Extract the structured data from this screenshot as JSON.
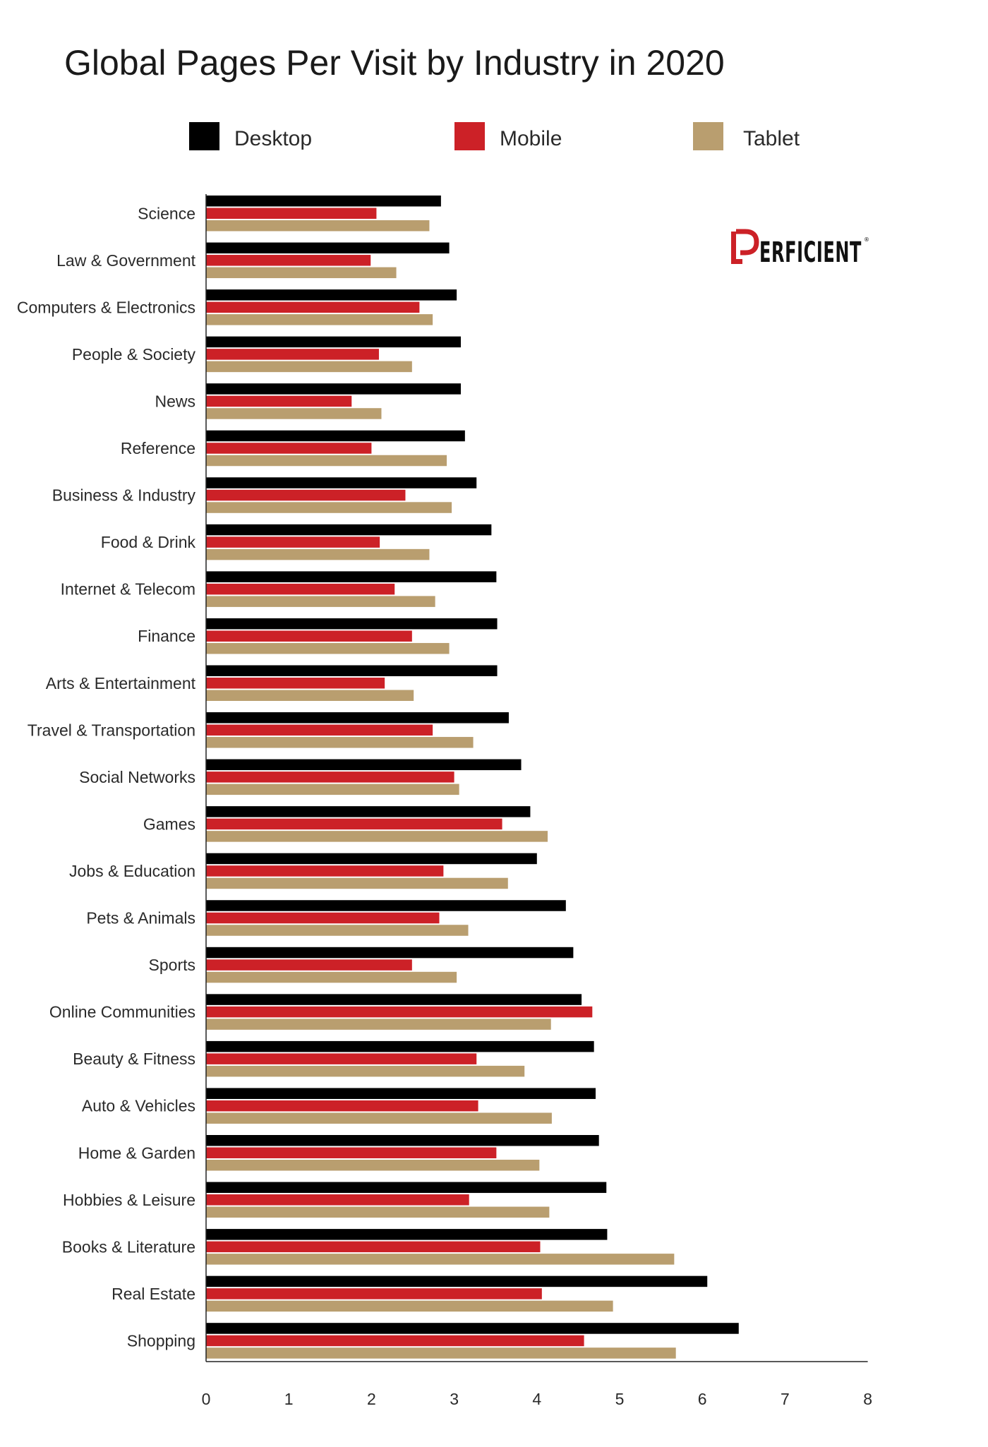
{
  "brand": {
    "name": "PERFICIENT",
    "logo_initial": "P",
    "logo_rest": "ERFICIENT",
    "accent_color": "#cc2127",
    "text_color": "#111111"
  },
  "chart_data": {
    "type": "bar",
    "orientation": "horizontal",
    "title": "Global Pages Per Visit by Industry in 2020",
    "xlabel": "",
    "ylabel": "",
    "xlim": [
      0,
      8
    ],
    "xticks": [
      "0",
      "1",
      "2",
      "3",
      "4",
      "5",
      "6",
      "7",
      "8"
    ],
    "grid": false,
    "legend_position": "top",
    "categories": [
      "Science",
      "Law & Government",
      "Computers & Electronics",
      "People & Society",
      "News",
      "Reference",
      "Business & Industry",
      "Food & Drink",
      "Internet & Telecom",
      "Finance",
      "Arts & Entertainment",
      "Travel & Transportation",
      "Social Networks",
      "Games",
      "Jobs & Education",
      "Pets & Animals",
      "Sports",
      "Online Communities",
      "Beauty & Fitness",
      "Auto & Vehicles",
      "Home & Garden",
      "Hobbies & Leisure",
      "Books & Literature",
      "Real Estate",
      "Shopping"
    ],
    "series": [
      {
        "name": "Desktop",
        "color": "#000000",
        "values": [
          2.84,
          2.94,
          3.03,
          3.08,
          3.08,
          3.13,
          3.27,
          3.45,
          3.51,
          3.52,
          3.52,
          3.66,
          3.81,
          3.92,
          4.0,
          4.35,
          4.44,
          4.54,
          4.69,
          4.71,
          4.75,
          4.84,
          4.85,
          6.06,
          6.44
        ]
      },
      {
        "name": "Mobile",
        "color": "#cc2127",
        "values": [
          2.06,
          1.99,
          2.58,
          2.09,
          1.76,
          2.0,
          2.41,
          2.1,
          2.28,
          2.49,
          2.16,
          2.74,
          3.0,
          3.58,
          2.87,
          2.82,
          2.49,
          4.67,
          3.27,
          3.29,
          3.51,
          3.18,
          4.04,
          4.06,
          4.57
        ]
      },
      {
        "name": "Tablet",
        "color": "#b99e6f",
        "values": [
          2.7,
          2.3,
          2.74,
          2.49,
          2.12,
          2.91,
          2.97,
          2.7,
          2.77,
          2.94,
          2.51,
          3.23,
          3.06,
          4.13,
          3.65,
          3.17,
          3.03,
          4.17,
          3.85,
          4.18,
          4.03,
          4.15,
          5.66,
          4.92,
          5.68
        ]
      }
    ]
  }
}
